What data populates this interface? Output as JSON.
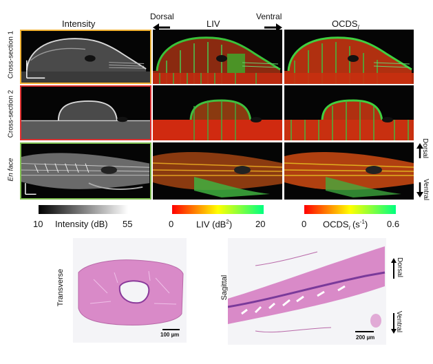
{
  "columns": {
    "intensity": "Intensity",
    "liv": "LIV",
    "ocds_main": "OCDS",
    "ocds_sub": "l"
  },
  "orientation": {
    "dorsal": "Dorsal",
    "ventral": "Ventral"
  },
  "rows": {
    "cs1": "Cross-section 1",
    "cs2": "Cross-section 2",
    "enface": "En face"
  },
  "side_labels": {
    "dorsal": "Dorsal",
    "ventral": "Ventral"
  },
  "colorbars": {
    "intensity": {
      "min": "10",
      "label": "Intensity (dB)",
      "max": "55"
    },
    "liv": {
      "min": "0",
      "label_pre": "LIV (dB",
      "label_sup": "2",
      "label_post": ")",
      "max": "20"
    },
    "ocds": {
      "min": "0",
      "label_pre": "OCDS",
      "label_sub": "l",
      "label_mid": " (s",
      "label_sup": "-1",
      "label_post": ")",
      "max": "0.6"
    }
  },
  "histology": {
    "transverse": {
      "label": "Transverse",
      "scale": "100 µm"
    },
    "sagittal": {
      "label": "Sagittal",
      "scale": "200 µm",
      "dorsal": "Dorsal",
      "ventral": "Ventral"
    }
  },
  "colors": {
    "cs1_border": "#f0b030",
    "cs2_border": "#e03030",
    "enface_border": "#7fbf4f",
    "he_pink": "#d98ac8",
    "he_purple": "#7a3a9a"
  }
}
